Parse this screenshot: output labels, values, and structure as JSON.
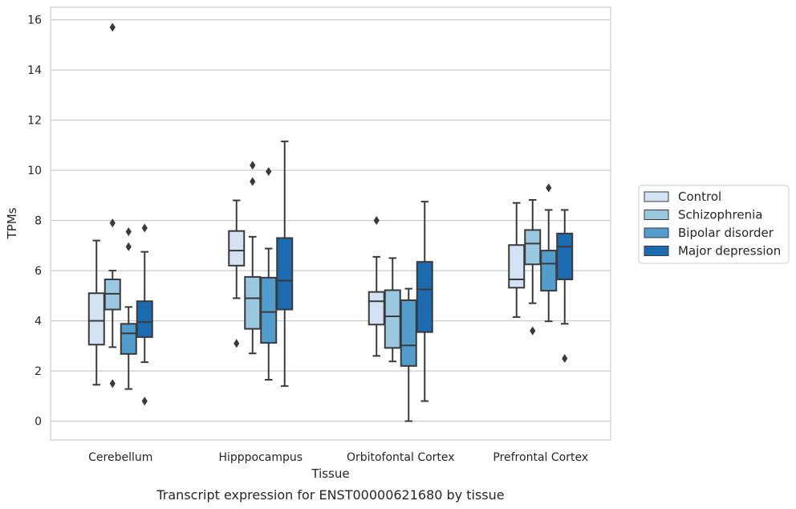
{
  "caption": "Transcript expression for ENST00000621680 by tissue",
  "chart_data": {
    "type": "box",
    "xlabel": "Tissue",
    "ylabel": "TPMs",
    "ylim": [
      -0.75,
      16.5
    ],
    "yticks": [
      0,
      2,
      4,
      6,
      8,
      10,
      12,
      14,
      16
    ],
    "grid": true,
    "legend_position": "right",
    "categories": [
      "Cerebellum",
      "Hipppocampus",
      "Orbitofontal Cortex",
      "Prefrontal Cortex"
    ],
    "series": [
      {
        "name": "Control",
        "color": "#d3e3f3",
        "boxes": [
          {
            "whislo": 1.45,
            "q1": 3.05,
            "med": 4.0,
            "q3": 5.1,
            "whishi": 7.2,
            "fliers": []
          },
          {
            "whislo": 4.9,
            "q1": 6.2,
            "med": 6.8,
            "q3": 7.58,
            "whishi": 8.8,
            "fliers": [
              3.1
            ]
          },
          {
            "whislo": 2.6,
            "q1": 3.85,
            "med": 4.78,
            "q3": 5.15,
            "whishi": 6.55,
            "fliers": [
              8.0
            ]
          },
          {
            "whislo": 4.15,
            "q1": 5.32,
            "med": 5.65,
            "q3": 7.02,
            "whishi": 8.7,
            "fliers": []
          }
        ]
      },
      {
        "name": "Schizophrenia",
        "color": "#9ac8e0",
        "boxes": [
          {
            "whislo": 2.95,
            "q1": 4.45,
            "med": 5.08,
            "q3": 5.65,
            "whishi": 6.0,
            "fliers": [
              7.9,
              1.5,
              15.7
            ]
          },
          {
            "whislo": 2.7,
            "q1": 3.68,
            "med": 4.9,
            "q3": 5.75,
            "whishi": 7.35,
            "fliers": [
              10.2,
              9.55
            ]
          },
          {
            "whislo": 2.38,
            "q1": 2.92,
            "med": 4.18,
            "q3": 5.22,
            "whishi": 6.5,
            "fliers": []
          },
          {
            "whislo": 4.7,
            "q1": 6.25,
            "med": 7.08,
            "q3": 7.62,
            "whishi": 8.82,
            "fliers": [
              3.6
            ]
          }
        ]
      },
      {
        "name": "Bipolar disorder",
        "color": "#529dcc",
        "boxes": [
          {
            "whislo": 1.28,
            "q1": 2.68,
            "med": 3.5,
            "q3": 3.88,
            "whishi": 4.55,
            "fliers": [
              7.55,
              6.95
            ]
          },
          {
            "whislo": 1.65,
            "q1": 3.12,
            "med": 4.35,
            "q3": 5.72,
            "whishi": 6.88,
            "fliers": [
              9.95
            ]
          },
          {
            "whislo": 0.0,
            "q1": 2.2,
            "med": 3.02,
            "q3": 4.82,
            "whishi": 5.28,
            "fliers": []
          },
          {
            "whislo": 3.98,
            "q1": 5.2,
            "med": 6.28,
            "q3": 6.8,
            "whishi": 8.42,
            "fliers": [
              9.3
            ]
          }
        ]
      },
      {
        "name": "Major depression",
        "color": "#1c6aaf",
        "boxes": [
          {
            "whislo": 2.35,
            "q1": 3.35,
            "med": 3.95,
            "q3": 4.78,
            "whishi": 6.75,
            "fliers": [
              7.7,
              0.8
            ]
          },
          {
            "whislo": 1.4,
            "q1": 4.45,
            "med": 5.6,
            "q3": 7.3,
            "whishi": 11.15,
            "fliers": []
          },
          {
            "whislo": 0.8,
            "q1": 3.55,
            "med": 5.25,
            "q3": 6.35,
            "whishi": 8.75,
            "fliers": []
          },
          {
            "whislo": 3.88,
            "q1": 5.65,
            "med": 6.95,
            "q3": 7.48,
            "whishi": 8.42,
            "fliers": [
              2.5
            ]
          }
        ]
      }
    ]
  }
}
